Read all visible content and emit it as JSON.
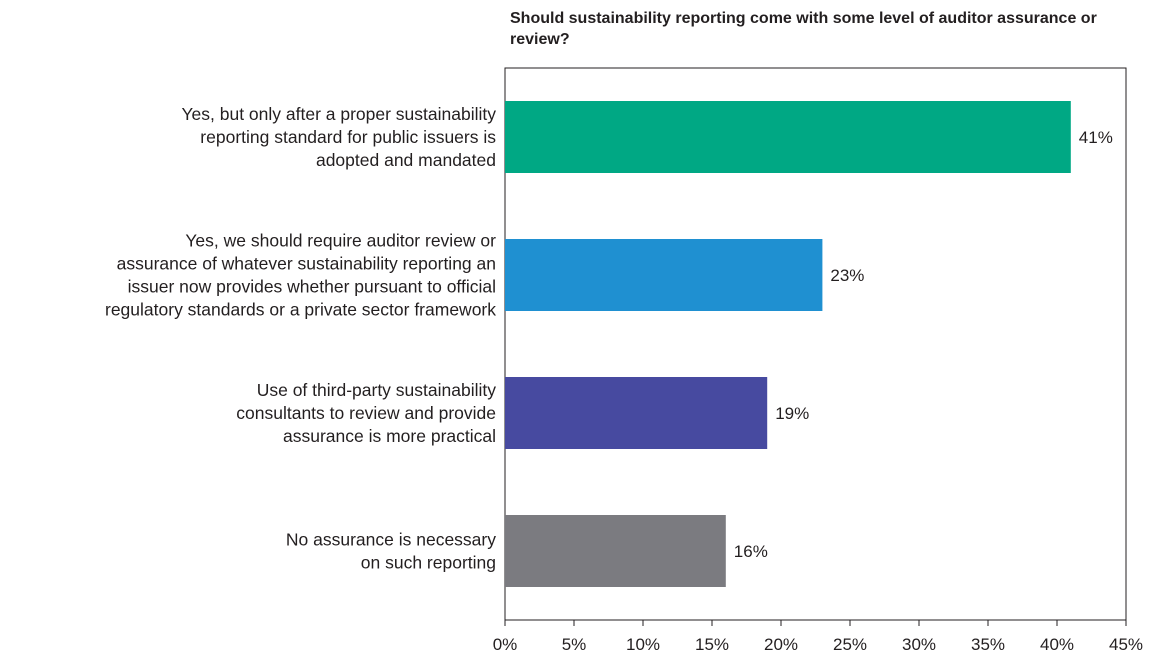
{
  "chart_data": {
    "type": "bar",
    "orientation": "horizontal",
    "title": "Should sustainability reporting come with some level of auditor assurance or review?",
    "categories": [
      [
        "Yes, but only after a proper sustainability",
        "reporting standard for public issuers is",
        "adopted and mandated"
      ],
      [
        "Yes, we should require auditor review or",
        "assurance of whatever sustainability reporting an",
        "issuer now provides whether pursuant to official",
        "regulatory standards or a private sector framework"
      ],
      [
        "Use of third-party sustainability",
        "consultants to review and provide",
        "assurance is more practical"
      ],
      [
        "No assurance is necessary",
        "on such reporting"
      ]
    ],
    "values": [
      41,
      23,
      19,
      16
    ],
    "value_labels": [
      "41%",
      "23%",
      "19%",
      "16%"
    ],
    "colors": [
      "#00a884",
      "#1f90d1",
      "#474aa0",
      "#7b7b80"
    ],
    "xlim": [
      0,
      45
    ],
    "xticks": [
      0,
      5,
      10,
      15,
      20,
      25,
      30,
      35,
      40,
      45
    ],
    "xtick_labels": [
      "0%",
      "5%",
      "10%",
      "15%",
      "20%",
      "25%",
      "30%",
      "35%",
      "40%",
      "45%"
    ],
    "xlabel": "",
    "ylabel": "",
    "grid": false,
    "legend": "none"
  }
}
